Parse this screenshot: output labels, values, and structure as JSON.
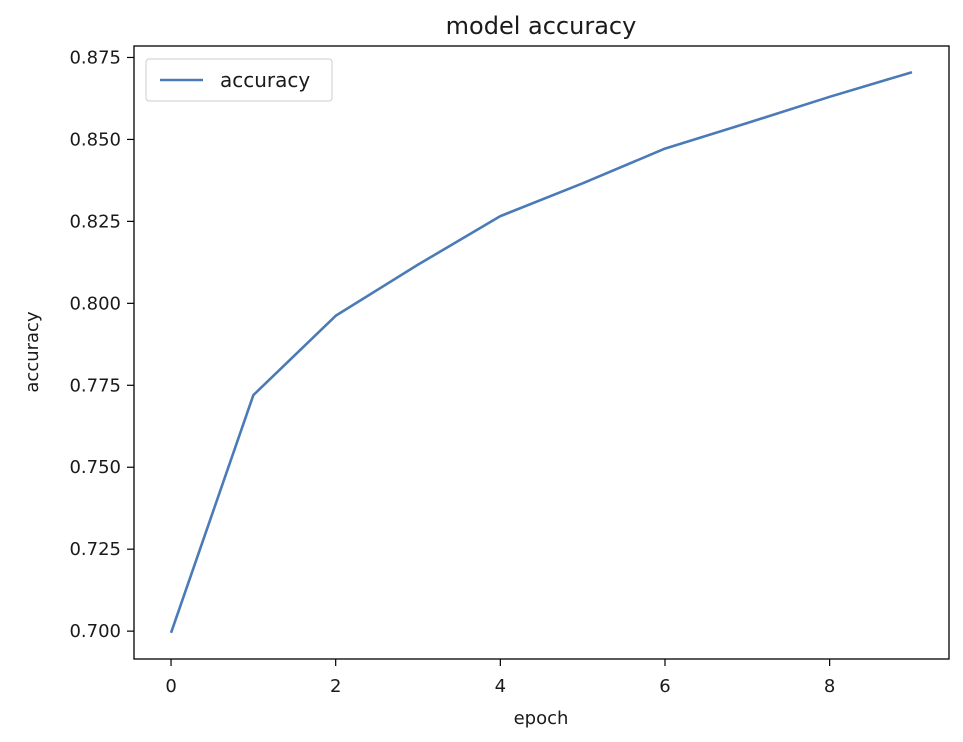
{
  "chart_data": {
    "type": "line",
    "title": "model accuracy",
    "xlabel": "epoch",
    "ylabel": "accuracy",
    "xlim": [
      -0.45,
      9.45
    ],
    "ylim": [
      0.6915,
      0.8785
    ],
    "x_ticks": [
      0,
      2,
      4,
      6,
      8
    ],
    "x_tick_labels": [
      "0",
      "2",
      "4",
      "6",
      "8"
    ],
    "y_ticks": [
      0.7,
      0.725,
      0.75,
      0.775,
      0.8,
      0.825,
      0.85,
      0.875
    ],
    "y_tick_labels": [
      "0.700",
      "0.725",
      "0.750",
      "0.775",
      "0.800",
      "0.825",
      "0.850",
      "0.875"
    ],
    "grid": false,
    "legend_position": "upper-left",
    "series": [
      {
        "name": "accuracy",
        "color": "#4a7bb7",
        "x": [
          0,
          1,
          2,
          3,
          4,
          5,
          6,
          7,
          8,
          9
        ],
        "values": [
          0.6995,
          0.772,
          0.7962,
          0.8118,
          0.8266,
          0.8366,
          0.8472,
          0.855,
          0.863,
          0.8705
        ]
      }
    ]
  }
}
